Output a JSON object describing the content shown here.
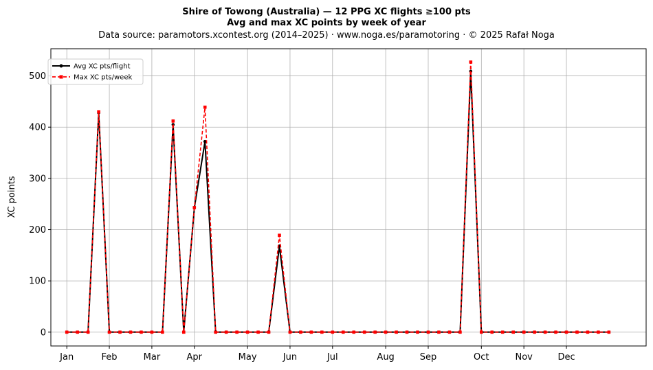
{
  "chart_data": {
    "type": "line",
    "title_lines": [
      "Shire of Towong (Australia)  —  12 PPG XC flights ≥100 pts",
      "Avg and max XC points by week of year"
    ],
    "subtitle": "Data source: paramotors.xcontest.org (2014–2025)  ·  www.noga.es/paramotoring  ·  © 2025 Rafał Noga",
    "ylabel": "XC points",
    "xlabel": "",
    "xlim": [
      -1.5,
      54.5
    ],
    "ylim": [
      -27,
      553
    ],
    "yticks": [
      0,
      100,
      200,
      300,
      400,
      500
    ],
    "x_ticks": [
      {
        "label": "Jan",
        "x": 0
      },
      {
        "label": "Feb",
        "x": 4
      },
      {
        "label": "Mar",
        "x": 8
      },
      {
        "label": "Apr",
        "x": 12
      },
      {
        "label": "May",
        "x": 17
      },
      {
        "label": "Jun",
        "x": 21
      },
      {
        "label": "Jul",
        "x": 25
      },
      {
        "label": "Aug",
        "x": 30
      },
      {
        "label": "Sep",
        "x": 34
      },
      {
        "label": "Oct",
        "x": 39
      },
      {
        "label": "Nov",
        "x": 43
      },
      {
        "label": "Dec",
        "x": 47
      }
    ],
    "grid": true,
    "legend_position": "upper-left",
    "x": [
      0,
      1,
      2,
      3,
      4,
      5,
      6,
      7,
      8,
      9,
      10,
      11,
      12,
      13,
      14,
      15,
      16,
      17,
      18,
      19,
      20,
      21,
      22,
      23,
      24,
      25,
      26,
      27,
      28,
      29,
      30,
      31,
      32,
      33,
      34,
      35,
      36,
      37,
      38,
      39,
      40,
      41,
      42,
      43,
      44,
      45,
      46,
      47,
      48,
      49,
      50,
      51
    ],
    "series": [
      {
        "name": "Avg XC pts/flight",
        "color": "#000000",
        "style": "solid",
        "marker": "circle",
        "values": [
          0,
          0,
          0,
          428,
          0,
          0,
          0,
          0,
          0,
          0,
          405,
          0,
          243,
          372,
          0,
          0,
          0,
          0,
          0,
          0,
          168,
          0,
          0,
          0,
          0,
          0,
          0,
          0,
          0,
          0,
          0,
          0,
          0,
          0,
          0,
          0,
          0,
          0,
          509,
          0,
          0,
          0,
          0,
          0,
          0,
          0,
          0,
          0,
          0,
          0,
          0,
          0
        ]
      },
      {
        "name": "Max XC pts/week",
        "color": "#ff0000",
        "style": "dashed",
        "marker": "square",
        "values": [
          0,
          0,
          0,
          430,
          0,
          0,
          0,
          0,
          0,
          0,
          412,
          0,
          243,
          439,
          0,
          0,
          0,
          0,
          0,
          0,
          189,
          0,
          0,
          0,
          0,
          0,
          0,
          0,
          0,
          0,
          0,
          0,
          0,
          0,
          0,
          0,
          0,
          0,
          527,
          0,
          0,
          0,
          0,
          0,
          0,
          0,
          0,
          0,
          0,
          0,
          0,
          0
        ]
      }
    ]
  }
}
